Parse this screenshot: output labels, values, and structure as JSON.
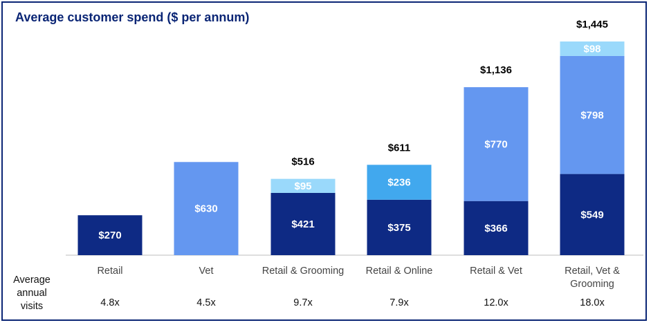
{
  "chart_data": {
    "type": "bar",
    "stacked": true,
    "title": "Average customer spend ($ per annum)",
    "categories": [
      "Retail",
      "Vet",
      "Retail & Grooming",
      "Retail & Online",
      "Retail & Vet",
      "Retail, Vet & Grooming"
    ],
    "category_lines": [
      [
        "Retail"
      ],
      [
        "Vet"
      ],
      [
        "Retail & Grooming"
      ],
      [
        "Retail & Online"
      ],
      [
        "Retail & Vet"
      ],
      [
        "Retail, Vet &",
        "Grooming"
      ]
    ],
    "bars": [
      {
        "segments": [
          {
            "value": 270,
            "label": "$270",
            "color": "#0e2a84"
          }
        ],
        "total": 270,
        "total_label": ""
      },
      {
        "segments": [
          {
            "value": 630,
            "label": "$630",
            "color": "#6497f0"
          }
        ],
        "total": 630,
        "total_label": ""
      },
      {
        "segments": [
          {
            "value": 421,
            "label": "$421",
            "color": "#0e2a84"
          },
          {
            "value": 95,
            "label": "$95",
            "color": "#9ad9fb"
          }
        ],
        "total": 516,
        "total_label": "$516"
      },
      {
        "segments": [
          {
            "value": 375,
            "label": "$375",
            "color": "#0e2a84"
          },
          {
            "value": 236,
            "label": "$236",
            "color": "#41a8ee"
          }
        ],
        "total": 611,
        "total_label": "$611"
      },
      {
        "segments": [
          {
            "value": 366,
            "label": "$366",
            "color": "#0e2a84"
          },
          {
            "value": 770,
            "label": "$770",
            "color": "#6497f0"
          }
        ],
        "total": 1136,
        "total_label": "$1,136"
      },
      {
        "segments": [
          {
            "value": 549,
            "label": "$549",
            "color": "#0e2a84"
          },
          {
            "value": 798,
            "label": "$798",
            "color": "#6497f0"
          },
          {
            "value": 98,
            "label": "$98",
            "color": "#9ad9fb"
          }
        ],
        "total": 1445,
        "total_label": "$1,445"
      }
    ],
    "visits_row_title": [
      "Average",
      "annual",
      "visits"
    ],
    "visits": [
      "4.8x",
      "4.5x",
      "9.7x",
      "7.9x",
      "12.0x",
      "18.0x"
    ],
    "xlabel": "",
    "ylabel": "",
    "ylim": [
      0,
      1445
    ],
    "grid": false,
    "legend": "none"
  },
  "colors": {
    "frame": "#0a2575",
    "title": "#0a2575",
    "axis": "#bdbdbd"
  }
}
